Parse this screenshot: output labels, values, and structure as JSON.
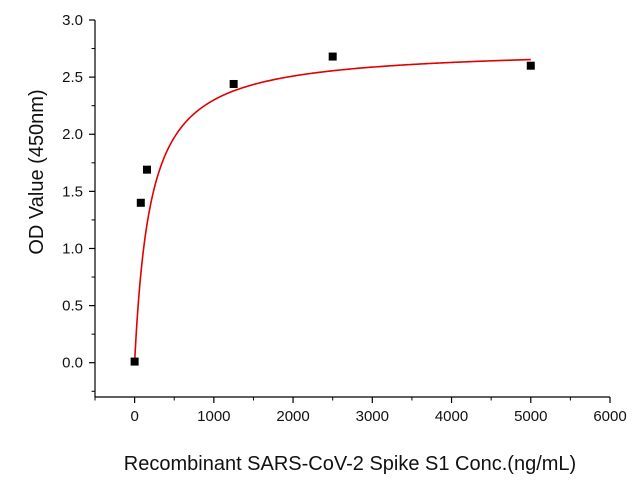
{
  "chart_data": {
    "type": "scatter",
    "title": "",
    "xlabel": "Recombinant SARS-CoV-2 Spike S1 Conc.(ng/mL)",
    "ylabel": "OD Value (450nm)",
    "xlim": [
      -500,
      6000
    ],
    "ylim": [
      -0.3,
      3.0
    ],
    "x_ticks": [
      0,
      1000,
      2000,
      3000,
      4000,
      5000,
      6000
    ],
    "y_ticks": [
      0.0,
      0.5,
      1.0,
      1.5,
      2.0,
      2.5,
      3.0
    ],
    "x_tick_labels": [
      "0",
      "1000",
      "2000",
      "3000",
      "4000",
      "5000",
      "6000"
    ],
    "y_tick_labels": [
      "0.0",
      "0.5",
      "1.0",
      "1.5",
      "2.0",
      "2.5",
      "3.0"
    ],
    "grid": false,
    "series": [
      {
        "type": "scatter",
        "marker": "square",
        "color": "#000000",
        "x": [
          0,
          78,
          156,
          1250,
          2500,
          5000
        ],
        "y": [
          0.01,
          1.4,
          1.69,
          2.44,
          2.68,
          2.6
        ]
      },
      {
        "type": "line",
        "fit": "hyperbolic",
        "color": "#e00000",
        "bmax": 2.76,
        "kd": 200
      }
    ]
  }
}
